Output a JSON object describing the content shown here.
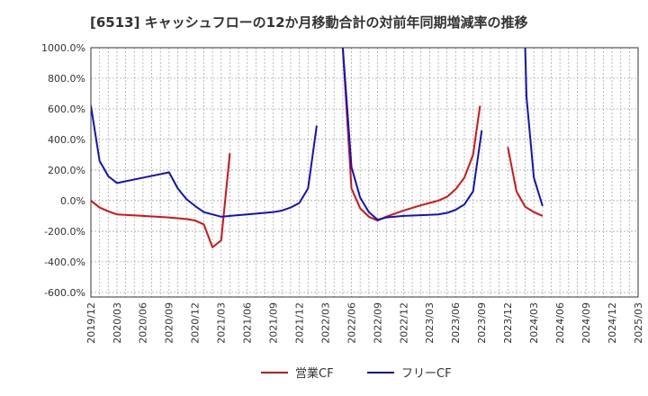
{
  "chart_data": {
    "type": "line",
    "title": "[6513]  キャッシュフローの12か月移動合計の対前年同期増減率の推移",
    "xlabel": "",
    "ylabel": "",
    "ylim": [
      -630,
      1000
    ],
    "yticks": [
      1000,
      800,
      600,
      400,
      200,
      0,
      -200,
      -400,
      -600
    ],
    "ytick_labels": [
      "1000.0%",
      "800.0%",
      "600.0%",
      "400.0%",
      "200.0%",
      "0.0%",
      "-200.0%",
      "-400.0%",
      "-600.0%"
    ],
    "x_start": "2019-12",
    "x_end": "2025-03",
    "xtick_labels": [
      "2019/12",
      "2020/03",
      "2020/06",
      "2020/09",
      "2020/12",
      "2021/03",
      "2021/06",
      "2021/09",
      "2021/12",
      "2022/03",
      "2022/06",
      "2022/09",
      "2022/12",
      "2023/03",
      "2023/06",
      "2023/09",
      "2023/12",
      "2024/03",
      "2024/06",
      "2024/09",
      "2024/12",
      "2025/03"
    ],
    "grid": true,
    "legend_position": "bottom",
    "series": [
      {
        "name": "営業CF",
        "color": "#dd1111",
        "points": [
          [
            0,
            0
          ],
          [
            1,
            -45
          ],
          [
            2,
            -70
          ],
          [
            3,
            -90
          ],
          [
            6,
            -100
          ],
          [
            9,
            -110
          ],
          [
            11,
            -120
          ],
          [
            12,
            -130
          ],
          [
            13,
            -155
          ],
          [
            14,
            -305
          ],
          [
            15,
            -260
          ],
          [
            16,
            310
          ],
          null,
          [
            29,
            1000
          ],
          [
            30,
            80
          ],
          [
            31,
            -50
          ],
          [
            32,
            -105
          ],
          [
            33,
            -130
          ],
          [
            34,
            -105
          ],
          [
            36,
            -65
          ],
          [
            38,
            -30
          ],
          [
            39,
            -15
          ],
          [
            40,
            0
          ],
          [
            41,
            25
          ],
          [
            42,
            75
          ],
          [
            43,
            150
          ],
          [
            44,
            300
          ],
          [
            44.8,
            620
          ],
          null,
          [
            48,
            350
          ],
          [
            49,
            60
          ],
          [
            50,
            -40
          ],
          [
            51,
            -75
          ],
          [
            52,
            -100
          ]
        ]
      },
      {
        "name": "フリーCF",
        "color": "#1111cc",
        "points": [
          [
            0,
            620
          ],
          [
            1,
            260
          ],
          [
            2,
            160
          ],
          [
            3,
            115
          ],
          [
            6,
            150
          ],
          [
            9,
            185
          ],
          [
            10,
            80
          ],
          [
            11,
            10
          ],
          [
            12,
            -35
          ],
          [
            13,
            -75
          ],
          [
            15,
            -105
          ],
          [
            16,
            -100
          ],
          [
            18,
            -90
          ],
          [
            19,
            -85
          ],
          [
            21,
            -75
          ],
          [
            22,
            -65
          ],
          [
            23,
            -45
          ],
          [
            24,
            -15
          ],
          [
            25,
            80
          ],
          [
            26,
            490
          ],
          null,
          [
            29,
            1000
          ],
          [
            30,
            220
          ],
          [
            31,
            20
          ],
          [
            32,
            -75
          ],
          [
            33,
            -125
          ],
          [
            34,
            -110
          ],
          [
            36,
            -100
          ],
          [
            38,
            -95
          ],
          [
            40,
            -90
          ],
          [
            41,
            -80
          ],
          [
            42,
            -60
          ],
          [
            43,
            -25
          ],
          [
            44,
            60
          ],
          [
            45,
            460
          ],
          null,
          [
            50,
            1000
          ],
          [
            50.15,
            680
          ],
          [
            51,
            150
          ],
          [
            52,
            -35
          ]
        ]
      }
    ]
  }
}
